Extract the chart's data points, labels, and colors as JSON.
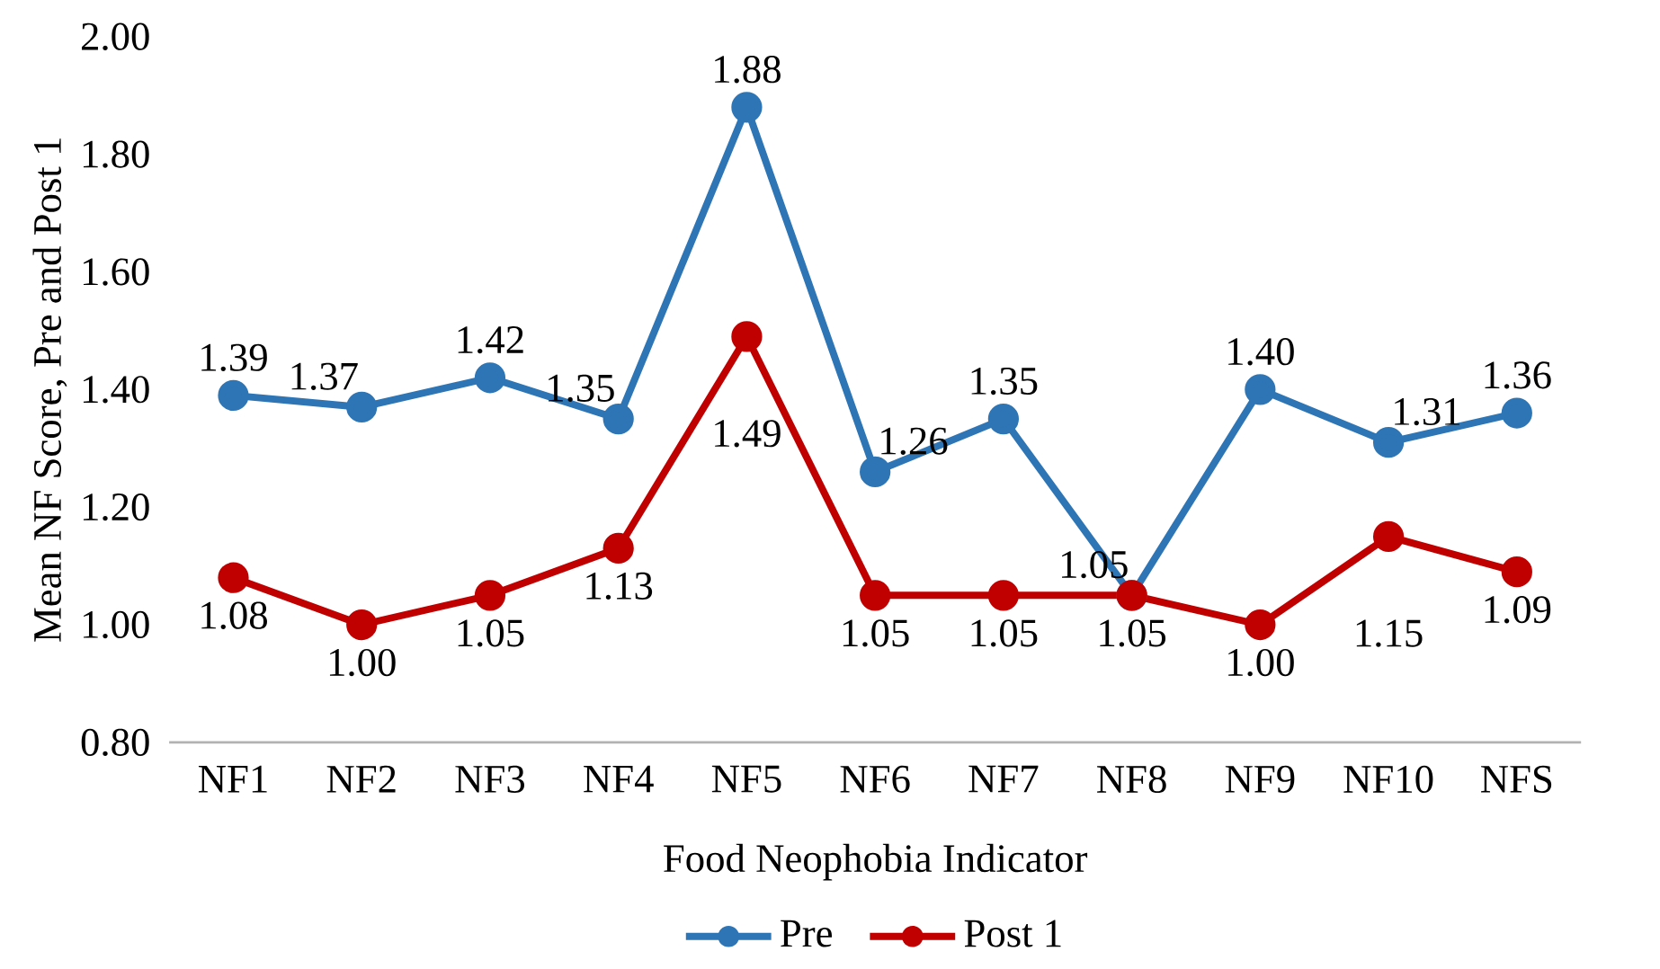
{
  "chart_data": {
    "type": "line",
    "xlabel": "Food Neophobia Indicator",
    "ylabel": "Mean NF Score, Pre and Post 1",
    "categories": [
      "NF1",
      "NF2",
      "NF3",
      "NF4",
      "NF5",
      "NF6",
      "NF7",
      "NF8",
      "NF9",
      "NF10",
      "NFS"
    ],
    "series": [
      {
        "name": "Pre",
        "color": "#2e75b6",
        "values": [
          1.39,
          1.37,
          1.42,
          1.35,
          1.88,
          1.26,
          1.35,
          1.05,
          1.4,
          1.31,
          1.36
        ],
        "value_labels": [
          "1.39",
          "1.37",
          "1.42",
          "1.35",
          "1.88",
          "1.26",
          "1.35",
          "1.05",
          "1.40",
          "1.31",
          "1.36"
        ]
      },
      {
        "name": "Post 1",
        "color": "#c00000",
        "values": [
          1.08,
          1.0,
          1.05,
          1.13,
          1.49,
          1.05,
          1.05,
          1.05,
          1.0,
          1.15,
          1.09
        ],
        "value_labels": [
          "1.08",
          "1.00",
          "1.05",
          "1.13",
          "1.49",
          "1.05",
          "1.05",
          "1.05",
          "1.00",
          "1.15",
          "1.09"
        ]
      }
    ],
    "ylim": [
      0.8,
      2.0
    ],
    "yticks": [
      {
        "value": 0.8,
        "label": "0.80"
      },
      {
        "value": 1.0,
        "label": "1.00"
      },
      {
        "value": 1.2,
        "label": "1.20"
      },
      {
        "value": 1.4,
        "label": "1.40"
      },
      {
        "value": 1.6,
        "label": "1.60"
      },
      {
        "value": 1.8,
        "label": "1.80"
      },
      {
        "value": 2.0,
        "label": "2.00"
      }
    ],
    "grid": false,
    "legend": "bottom",
    "marker": "circle",
    "line_style": "solid"
  }
}
